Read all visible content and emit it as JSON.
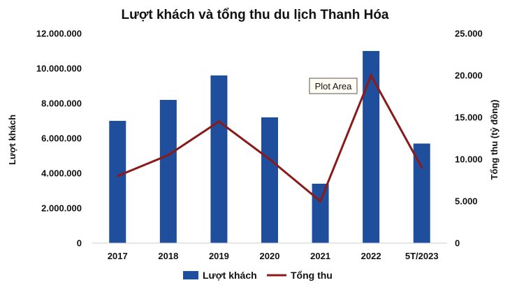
{
  "chart_data": {
    "type": "bar",
    "title": "Lượt khách và tổng thu du lịch Thanh Hóa",
    "categories": [
      "2017",
      "2018",
      "2019",
      "2020",
      "2021",
      "2022",
      "5T/2023"
    ],
    "series": [
      {
        "name": "Lượt khách",
        "type": "bar",
        "axis": "left",
        "color": "#1f4e9c",
        "values": [
          7000000,
          8200000,
          9600000,
          7200000,
          3400000,
          11000000,
          5700000
        ]
      },
      {
        "name": "Tổng thu",
        "type": "line",
        "axis": "right",
        "color": "#8b1a1a",
        "values": [
          8000,
          10500,
          14500,
          10000,
          5000,
          20000,
          9000
        ]
      }
    ],
    "y_left": {
      "label": "Lượt khách",
      "ticks": [
        "0",
        "2.000.000",
        "4.000.000",
        "6.000.000",
        "8.000.000",
        "10.000.000",
        "12.000.000"
      ],
      "range": [
        0,
        12000000
      ]
    },
    "y_right": {
      "label": "Tổng thu (tỷ đồng)",
      "ticks": [
        "0",
        "5.000",
        "10.000",
        "15.000",
        "20.000",
        "25.000"
      ],
      "range": [
        0,
        25000
      ]
    },
    "grid": false,
    "legend_position": "bottom-center",
    "annotation": "Plot Area"
  }
}
